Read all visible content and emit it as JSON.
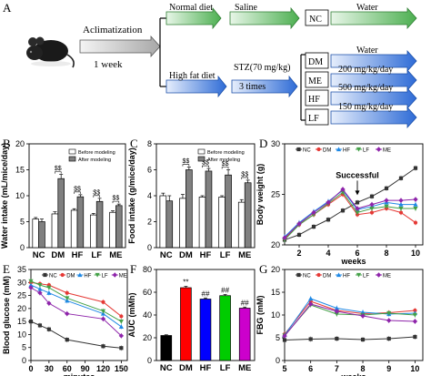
{
  "panels": {
    "A": {
      "label": "A",
      "acclimatization": "Aclimatization",
      "acc_duration": "1 week",
      "normal_diet": "Normal diet",
      "saline": "Saline",
      "high_fat_diet": "High fat diet",
      "stz": "STZ(70 mg/kg)",
      "stz_times": "3 times",
      "groups": [
        {
          "id": "NC",
          "treatment": "Water"
        },
        {
          "id": "DM",
          "treatment": "Water"
        },
        {
          "id": "ME",
          "treatment": "200 mg/kg/day"
        },
        {
          "id": "HF",
          "treatment": "500 mg/kg/day"
        },
        {
          "id": "LF",
          "treatment": "150 mg/kg/day"
        }
      ],
      "colors": {
        "green": "#4caf50",
        "blue": "#2e6bd6"
      }
    },
    "B": {
      "label": "B"
    },
    "C": {
      "label": "C"
    },
    "D": {
      "label": "D",
      "annotation": "Successful"
    },
    "E": {
      "label": "E"
    },
    "F": {
      "label": "F"
    },
    "G": {
      "label": "G"
    }
  },
  "chart_data": [
    {
      "panel": "B",
      "type": "bar",
      "ylabel": "Water intake (mL/mice/day)",
      "categories": [
        "NC",
        "DM",
        "HF",
        "LF",
        "ME"
      ],
      "ylim": [
        0,
        20
      ],
      "yticks": [
        0,
        5,
        10,
        15,
        20
      ],
      "series": [
        {
          "name": "Before modeling",
          "color": "#ffffff",
          "values": [
            5.5,
            6.5,
            7.2,
            6.3,
            6.8
          ],
          "err": [
            0.3,
            0.4,
            0.3,
            0.3,
            0.3
          ]
        },
        {
          "name": "After modeling",
          "color": "#808080",
          "values": [
            5.0,
            13.3,
            9.8,
            8.9,
            8.1
          ],
          "err": [
            0.5,
            0.8,
            0.4,
            0.6,
            0.3
          ]
        }
      ],
      "sig": [
        "",
        "$$",
        "$$",
        "$$",
        "$$"
      ],
      "legend": "top-right"
    },
    {
      "panel": "C",
      "type": "bar",
      "ylabel": "Food intake (g/mice/day)",
      "categories": [
        "NC",
        "DM",
        "HF",
        "LF",
        "ME"
      ],
      "ylim": [
        0,
        8
      ],
      "yticks": [
        0,
        2,
        4,
        6,
        8
      ],
      "series": [
        {
          "name": "Before modeling",
          "color": "#ffffff",
          "values": [
            4.0,
            3.8,
            3.9,
            3.9,
            3.5
          ],
          "err": [
            0.2,
            0.3,
            0.1,
            0.1,
            0.2
          ]
        },
        {
          "name": "After modeling",
          "color": "#808080",
          "values": [
            3.6,
            6.0,
            5.9,
            5.6,
            5.0
          ],
          "err": [
            0.4,
            0.2,
            0.2,
            0.4,
            0.2
          ]
        }
      ],
      "sig": [
        "",
        "$$",
        "$$",
        "$$",
        "$$"
      ],
      "legend": "top-right"
    },
    {
      "panel": "D",
      "type": "line",
      "xlabel": "weeks",
      "ylabel": "Body weight (g)",
      "x": [
        1,
        2,
        3,
        4,
        5,
        6,
        7,
        8,
        9,
        10
      ],
      "xlim": [
        1,
        10.5
      ],
      "xticks": [
        2,
        4,
        6,
        8,
        10
      ],
      "ylim": [
        20,
        30
      ],
      "yticks": [
        20,
        25,
        30
      ],
      "series": [
        {
          "name": "NC",
          "color": "#333333",
          "marker": "square",
          "values": [
            20.5,
            21.0,
            21.8,
            22.5,
            23.4,
            24.2,
            24.8,
            25.6,
            26.6,
            27.6
          ]
        },
        {
          "name": "DM",
          "color": "#e53935",
          "marker": "circle",
          "values": [
            20.6,
            22.0,
            23.0,
            24.0,
            25.0,
            23.0,
            23.2,
            23.6,
            23.2,
            22.2
          ]
        },
        {
          "name": "HF",
          "color": "#1e88e5",
          "marker": "triangle",
          "values": [
            20.8,
            22.2,
            23.3,
            24.3,
            25.4,
            23.5,
            23.8,
            24.2,
            24.0,
            24.0
          ]
        },
        {
          "name": "LF",
          "color": "#43a047",
          "marker": "triangle-down",
          "values": [
            20.5,
            22.0,
            23.0,
            24.1,
            25.2,
            23.2,
            23.6,
            23.8,
            23.6,
            23.6
          ]
        },
        {
          "name": "ME",
          "color": "#8e24aa",
          "marker": "diamond",
          "values": [
            20.7,
            22.1,
            23.2,
            24.2,
            25.5,
            23.6,
            24.0,
            24.4,
            24.4,
            24.5
          ]
        }
      ],
      "legend": "top"
    },
    {
      "panel": "E",
      "type": "line",
      "xlabel": "minutes",
      "ylabel": "Blood glucose (mM)",
      "x": [
        0,
        15,
        30,
        60,
        120,
        150
      ],
      "xlim": [
        0,
        160
      ],
      "xticks": [
        0,
        30,
        60,
        90,
        120,
        150
      ],
      "ylim": [
        0,
        35
      ],
      "yticks": [
        0,
        5,
        10,
        15,
        20,
        25,
        30,
        35
      ],
      "series": [
        {
          "name": "NC",
          "color": "#333333",
          "marker": "square",
          "values": [
            15.0,
            13.5,
            12.0,
            8.0,
            5.5,
            4.8
          ]
        },
        {
          "name": "DM",
          "color": "#e53935",
          "marker": "circle",
          "values": [
            30.0,
            29.5,
            29.0,
            26.0,
            22.5,
            17.0
          ]
        },
        {
          "name": "HF",
          "color": "#1e88e5",
          "marker": "triangle",
          "values": [
            29.0,
            27.5,
            26.0,
            23.0,
            18.0,
            13.0
          ]
        },
        {
          "name": "LF",
          "color": "#43a047",
          "marker": "triangle-down",
          "values": [
            30.5,
            29.0,
            28.0,
            24.0,
            19.0,
            15.0
          ]
        },
        {
          "name": "ME",
          "color": "#8e24aa",
          "marker": "diamond",
          "values": [
            28.0,
            26.0,
            22.0,
            18.0,
            16.0,
            9.5
          ]
        }
      ],
      "legend": "top"
    },
    {
      "panel": "F",
      "type": "bar",
      "ylabel": "AUC (mMh)",
      "categories": [
        "NC",
        "DM",
        "HF",
        "LF",
        "ME"
      ],
      "ylim": [
        0,
        80
      ],
      "yticks": [
        0,
        20,
        40,
        60,
        80
      ],
      "series": [
        {
          "name": "",
          "values": [
            22,
            64,
            54,
            57,
            46
          ],
          "err": [
            0.6,
            1.2,
            1.0,
            1.0,
            1.0
          ],
          "colors": [
            "#000000",
            "#ff0000",
            "#0000ff",
            "#00cc00",
            "#cc00cc"
          ]
        }
      ],
      "sig": [
        "",
        "**",
        "##",
        "##",
        "##"
      ]
    },
    {
      "panel": "G",
      "type": "line",
      "xlabel": "weeks",
      "ylabel": "FBG (mM)",
      "x": [
        5,
        6,
        7,
        8,
        9,
        10
      ],
      "xlim": [
        5,
        10.3
      ],
      "xticks": [
        5,
        6,
        7,
        8,
        9,
        10
      ],
      "ylim": [
        0,
        20
      ],
      "yticks": [
        0,
        5,
        10,
        15,
        20
      ],
      "series": [
        {
          "name": "NC",
          "color": "#333333",
          "marker": "square",
          "values": [
            4.5,
            4.7,
            4.8,
            4.6,
            4.8,
            5.2
          ]
        },
        {
          "name": "DM",
          "color": "#e53935",
          "marker": "circle",
          "values": [
            5.8,
            13.0,
            11.0,
            10.3,
            10.5,
            11.0
          ]
        },
        {
          "name": "HF",
          "color": "#1e88e5",
          "marker": "triangle",
          "values": [
            5.6,
            13.6,
            11.5,
            10.6,
            10.2,
            10.4
          ]
        },
        {
          "name": "LF",
          "color": "#43a047",
          "marker": "triangle-down",
          "values": [
            5.5,
            12.2,
            10.2,
            10.0,
            10.4,
            10.0
          ]
        },
        {
          "name": "ME",
          "color": "#8e24aa",
          "marker": "diamond",
          "values": [
            5.4,
            12.4,
            10.8,
            9.8,
            8.8,
            8.6
          ]
        }
      ],
      "legend": "top"
    }
  ]
}
